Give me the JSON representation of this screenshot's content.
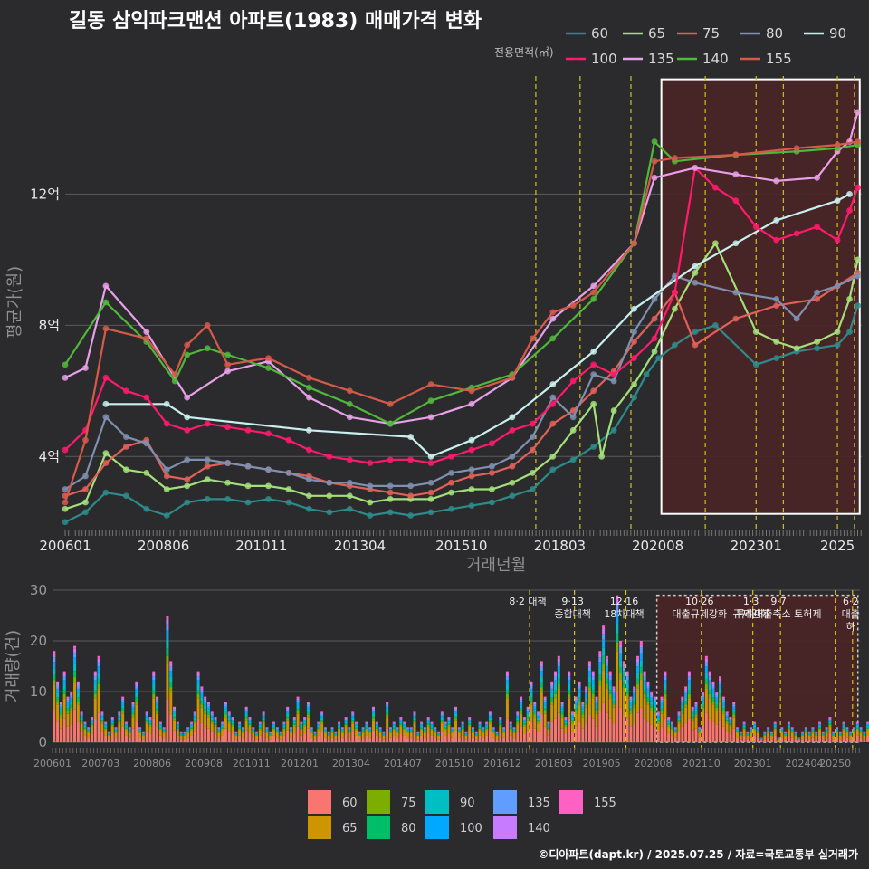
{
  "title": "길동 삼익파크맨션 아파트(1983) 매매가격 변화",
  "footer": "©디아파트(dapt.kr) / 2025.07.25 / 자료=국토교통부 실거래가",
  "colors": {
    "background": "#2b2b2d",
    "grid": "#5a5a5c",
    "highlight_fill": "#4a2325",
    "highlight_stroke": "#ffffff",
    "policy_line": "#d4c21e"
  },
  "chart_data": [
    {
      "type": "line",
      "xlabel": "거래년월",
      "ylabel": "평균가(원)",
      "ylim": [
        1.8,
        15.6
      ],
      "y_unit_note": "억",
      "y_ticks": [
        4,
        8,
        12
      ],
      "y_tick_labels": [
        "4억",
        "8억",
        "12억"
      ],
      "xlim": [
        2006.0,
        2025.6
      ],
      "x_ticks": [
        2006.0,
        2008.42,
        2010.83,
        2013.25,
        2015.75,
        2018.17,
        2020.58,
        2023.0,
        2025.0
      ],
      "x_tick_labels": [
        "200601",
        "200806",
        "201011",
        "201304",
        "201510",
        "201803",
        "202008",
        "202301",
        "2025"
      ],
      "legend": {
        "title": "전용면적(㎡)",
        "position": "top-right"
      },
      "highlight_region": {
        "x": [
          2020.67,
          2025.55
        ],
        "y": [
          2.25,
          15.5
        ]
      },
      "policy_dates": [
        2017.58,
        2018.67,
        2019.92,
        2021.75,
        2023.0,
        2023.67,
        2025.0,
        2025.42
      ],
      "series": [
        {
          "name": "60",
          "color": "#2e8b8b",
          "x": [
            2006.0,
            2006.5,
            2007.0,
            2007.5,
            2008.0,
            2008.5,
            2009.0,
            2009.5,
            2010.0,
            2010.5,
            2011.0,
            2011.5,
            2012.0,
            2012.5,
            2013.0,
            2013.5,
            2014.0,
            2014.5,
            2015.0,
            2015.5,
            2016.0,
            2016.5,
            2017.0,
            2017.5,
            2018.0,
            2018.5,
            2019.0,
            2019.5,
            2020.0,
            2020.3,
            2020.6,
            2021.0,
            2021.5,
            2022.0,
            2023.0,
            2023.5,
            2024.0,
            2024.5,
            2025.0,
            2025.3,
            2025.5
          ],
          "values": [
            2.0,
            2.3,
            2.9,
            2.8,
            2.4,
            2.2,
            2.6,
            2.7,
            2.7,
            2.6,
            2.7,
            2.6,
            2.4,
            2.3,
            2.4,
            2.2,
            2.3,
            2.2,
            2.3,
            2.4,
            2.5,
            2.6,
            2.8,
            3.0,
            3.6,
            3.9,
            4.3,
            4.8,
            5.8,
            6.5,
            7.0,
            7.4,
            7.8,
            8.0,
            6.8,
            7.0,
            7.2,
            7.3,
            7.4,
            7.8,
            8.6
          ]
        },
        {
          "name": "65",
          "color": "#a3e07a",
          "x": [
            2006.0,
            2006.5,
            2007.0,
            2007.5,
            2008.0,
            2008.5,
            2009.0,
            2009.5,
            2010.0,
            2010.5,
            2011.0,
            2011.5,
            2012.0,
            2012.5,
            2013.0,
            2013.5,
            2014.0,
            2014.5,
            2015.0,
            2015.5,
            2016.0,
            2016.5,
            2017.0,
            2017.5,
            2018.0,
            2018.5,
            2019.0,
            2019.2,
            2019.5,
            2020.0,
            2020.5,
            2021.0,
            2021.5,
            2022.0,
            2023.0,
            2023.5,
            2024.0,
            2024.5,
            2025.0,
            2025.3,
            2025.5
          ],
          "values": [
            2.4,
            2.6,
            4.1,
            3.6,
            3.5,
            3.0,
            3.1,
            3.3,
            3.2,
            3.1,
            3.1,
            3.0,
            2.8,
            2.8,
            2.8,
            2.6,
            2.7,
            2.7,
            2.7,
            2.9,
            3.0,
            3.0,
            3.2,
            3.5,
            4.0,
            4.8,
            5.6,
            4.0,
            5.4,
            6.2,
            7.2,
            8.5,
            9.6,
            10.5,
            7.8,
            7.5,
            7.3,
            7.5,
            7.8,
            8.8,
            10.0
          ]
        },
        {
          "name": "75",
          "color": "#e0605a",
          "x": [
            2006.0,
            2006.5,
            2007.0,
            2007.5,
            2008.0,
            2008.5,
            2009.0,
            2009.5,
            2010.0,
            2010.5,
            2011.0,
            2011.5,
            2012.0,
            2012.5,
            2013.0,
            2013.5,
            2014.0,
            2014.5,
            2015.0,
            2015.5,
            2016.0,
            2016.5,
            2017.0,
            2017.5,
            2018.0,
            2018.5,
            2019.0,
            2019.5,
            2020.0,
            2020.5,
            2021.0,
            2021.5,
            2022.5,
            2023.5,
            2024.5,
            2025.0,
            2025.5
          ],
          "values": [
            2.8,
            3.0,
            3.8,
            4.3,
            4.5,
            3.4,
            3.3,
            3.7,
            3.8,
            3.7,
            3.6,
            3.5,
            3.4,
            3.2,
            3.1,
            3.0,
            2.9,
            2.8,
            2.9,
            3.2,
            3.4,
            3.5,
            3.7,
            4.2,
            5.0,
            5.4,
            6.0,
            6.6,
            7.5,
            8.2,
            9.0,
            7.4,
            8.2,
            8.6,
            8.8,
            9.2,
            9.6
          ]
        },
        {
          "name": "80",
          "color": "#7f8fb0",
          "x": [
            2006.0,
            2006.5,
            2007.0,
            2007.5,
            2008.0,
            2008.5,
            2009.0,
            2009.5,
            2010.0,
            2010.5,
            2011.0,
            2011.5,
            2012.0,
            2012.5,
            2013.0,
            2013.5,
            2014.0,
            2014.5,
            2015.0,
            2015.5,
            2016.0,
            2016.5,
            2017.0,
            2017.5,
            2018.0,
            2018.5,
            2019.0,
            2019.5,
            2020.0,
            2020.5,
            2021.0,
            2021.5,
            2022.5,
            2023.5,
            2024.0,
            2024.5,
            2025.0,
            2025.5
          ],
          "values": [
            3.0,
            3.4,
            5.2,
            4.6,
            4.4,
            3.6,
            3.9,
            3.9,
            3.8,
            3.7,
            3.6,
            3.5,
            3.3,
            3.2,
            3.2,
            3.1,
            3.1,
            3.1,
            3.2,
            3.5,
            3.6,
            3.7,
            4.0,
            4.6,
            5.8,
            5.2,
            6.5,
            6.3,
            7.8,
            8.8,
            9.5,
            9.3,
            9.0,
            8.8,
            8.2,
            9.0,
            9.2,
            9.5
          ]
        },
        {
          "name": "90",
          "color": "#c8f0f0",
          "x": [
            2007.0,
            2008.5,
            2009.0,
            2012.0,
            2014.5,
            2015.0,
            2016.0,
            2017.0,
            2018.0,
            2019.0,
            2020.0,
            2021.5,
            2022.5,
            2023.5,
            2025.0,
            2025.3
          ],
          "values": [
            5.6,
            5.6,
            5.2,
            4.8,
            4.6,
            4.0,
            4.5,
            5.2,
            6.2,
            7.2,
            8.5,
            9.8,
            10.5,
            11.2,
            11.8,
            12.0
          ]
        },
        {
          "name": "100",
          "color": "#ff1a6b",
          "x": [
            2006.0,
            2006.5,
            2007.0,
            2007.5,
            2008.0,
            2008.5,
            2009.0,
            2009.5,
            2010.0,
            2010.5,
            2011.0,
            2011.5,
            2012.0,
            2012.5,
            2013.0,
            2013.5,
            2014.0,
            2014.5,
            2015.0,
            2015.5,
            2016.0,
            2016.5,
            2017.0,
            2017.5,
            2018.0,
            2018.5,
            2019.0,
            2019.5,
            2020.0,
            2020.5,
            2021.0,
            2021.5,
            2022.0,
            2022.5,
            2023.0,
            2023.5,
            2024.0,
            2024.5,
            2025.0,
            2025.3,
            2025.5
          ],
          "values": [
            4.2,
            4.8,
            6.4,
            6.0,
            5.8,
            5.0,
            4.8,
            5.0,
            4.9,
            4.8,
            4.7,
            4.5,
            4.2,
            4.0,
            3.9,
            3.8,
            3.9,
            3.9,
            3.8,
            4.0,
            4.2,
            4.4,
            4.8,
            5.0,
            5.6,
            6.3,
            6.8,
            6.5,
            7.0,
            7.6,
            9.0,
            12.8,
            12.2,
            11.8,
            11.0,
            10.6,
            10.8,
            11.0,
            10.6,
            11.5,
            12.2
          ]
        },
        {
          "name": "135",
          "color": "#e8a0e8",
          "x": [
            2006.0,
            2006.5,
            2007.0,
            2008.0,
            2009.0,
            2010.0,
            2011.0,
            2012.0,
            2013.0,
            2014.0,
            2015.0,
            2016.0,
            2017.0,
            2018.0,
            2019.0,
            2020.0,
            2020.5,
            2021.5,
            2022.5,
            2023.5,
            2024.5,
            2025.0,
            2025.3,
            2025.5
          ],
          "values": [
            6.4,
            6.7,
            9.2,
            7.8,
            5.8,
            6.6,
            6.9,
            5.8,
            5.2,
            5.0,
            5.2,
            5.6,
            6.4,
            8.2,
            9.2,
            10.5,
            12.5,
            12.8,
            12.6,
            12.4,
            12.5,
            13.3,
            13.6,
            14.5
          ]
        },
        {
          "name": "140",
          "color": "#4fb83a",
          "x": [
            2006.0,
            2007.0,
            2008.0,
            2008.7,
            2009.0,
            2009.5,
            2010.0,
            2011.0,
            2012.0,
            2013.0,
            2014.0,
            2015.0,
            2016.0,
            2017.0,
            2018.0,
            2019.0,
            2020.0,
            2020.5,
            2021.0,
            2022.5,
            2024.0,
            2025.0,
            2025.5
          ],
          "values": [
            6.8,
            8.7,
            7.5,
            6.3,
            7.1,
            7.3,
            7.1,
            6.7,
            6.1,
            5.6,
            5.0,
            5.7,
            6.1,
            6.5,
            7.6,
            8.8,
            10.5,
            13.6,
            13.0,
            13.2,
            13.3,
            13.4,
            13.5
          ]
        },
        {
          "name": "155",
          "color": "#d45a4a",
          "x": [
            2006.0,
            2006.5,
            2007.0,
            2008.0,
            2008.7,
            2009.0,
            2009.5,
            2010.0,
            2011.0,
            2012.0,
            2013.0,
            2014.0,
            2015.0,
            2016.0,
            2017.0,
            2017.5,
            2018.0,
            2018.5,
            2019.0,
            2020.0,
            2020.5,
            2021.0,
            2022.5,
            2024.0,
            2025.0,
            2025.5
          ],
          "values": [
            2.6,
            4.5,
            7.9,
            7.6,
            6.5,
            7.4,
            8.0,
            6.8,
            7.0,
            6.4,
            6.0,
            5.6,
            6.2,
            6.0,
            6.4,
            7.6,
            8.4,
            8.6,
            9.0,
            10.5,
            13.0,
            13.1,
            13.2,
            13.4,
            13.5,
            13.6
          ]
        }
      ]
    },
    {
      "type": "bar",
      "stacked": true,
      "ylabel": "거래량(건)",
      "ylim": [
        0,
        30
      ],
      "y_ticks": [
        0,
        10,
        20,
        30
      ],
      "xlim": [
        2006.0,
        2025.6
      ],
      "x_ticks": [
        2006.0,
        2007.17,
        2008.42,
        2009.67,
        2010.83,
        2012.0,
        2013.25,
        2014.5,
        2015.75,
        2016.92,
        2018.17,
        2019.33,
        2020.58,
        2021.75,
        2023.0,
        2024.25,
        2025.0
      ],
      "x_tick_labels": [
        "200601",
        "200703",
        "200806",
        "200908",
        "201011",
        "201201",
        "201304",
        "201407",
        "201510",
        "201612",
        "201803",
        "201905",
        "202008",
        "202110",
        "202301",
        "202404",
        "20250"
      ],
      "highlight_region": {
        "x": [
          2020.67,
          2025.55
        ],
        "y": [
          0,
          29
        ]
      },
      "policy_annotations": [
        {
          "x": 2017.58,
          "lines": [
            "8·2 대책"
          ]
        },
        {
          "x": 2018.67,
          "lines": [
            "9·13",
            "종합대책"
          ]
        },
        {
          "x": 2019.92,
          "lines": [
            "12·16",
            "18차대책"
          ]
        },
        {
          "x": 2021.75,
          "lines": [
            "10·26",
            "대출규제강화"
          ]
        },
        {
          "x": 2023.0,
          "lines": [
            "1·3",
            "규제완화"
          ]
        },
        {
          "x": 2023.67,
          "lines": [
            "9·7",
            "특례대출축소 토허제"
          ]
        },
        {
          "x": 2025.0,
          "lines": []
        },
        {
          "x": 2025.42,
          "lines": [
            "6·2",
            "대출",
            "하"
          ]
        }
      ],
      "series": [
        {
          "name": "60",
          "color": "#f8766d"
        },
        {
          "name": "65",
          "color": "#cd9600"
        },
        {
          "name": "75",
          "color": "#7cae00"
        },
        {
          "name": "80",
          "color": "#00be67"
        },
        {
          "name": "90",
          "color": "#00bfc4"
        },
        {
          "name": "100",
          "color": "#00a9ff"
        },
        {
          "name": "135",
          "color": "#619cff"
        },
        {
          "name": "140",
          "color": "#c77cff"
        },
        {
          "name": "155",
          "color": "#ff61c3"
        }
      ],
      "monthly_totals": [
        18,
        12,
        8,
        14,
        9,
        10,
        19,
        12,
        6,
        4,
        3,
        5,
        14,
        17,
        6,
        4,
        2,
        5,
        3,
        6,
        9,
        4,
        3,
        8,
        12,
        3,
        2,
        6,
        5,
        14,
        9,
        4,
        3,
        25,
        16,
        7,
        4,
        2,
        2,
        3,
        4,
        6,
        14,
        11,
        9,
        8,
        6,
        5,
        3,
        4,
        8,
        6,
        5,
        2,
        4,
        3,
        7,
        5,
        3,
        2,
        4,
        6,
        3,
        2,
        4,
        3,
        2,
        4,
        7,
        3,
        5,
        9,
        4,
        5,
        8,
        3,
        2,
        4,
        6,
        3,
        2,
        3,
        2,
        4,
        3,
        5,
        3,
        6,
        4,
        2,
        3,
        4,
        3,
        7,
        4,
        3,
        2,
        8,
        3,
        4,
        3,
        5,
        4,
        3,
        3,
        6,
        2,
        4,
        3,
        5,
        4,
        3,
        2,
        6,
        4,
        5,
        3,
        7,
        3,
        4,
        2,
        5,
        3,
        2,
        4,
        3,
        4,
        6,
        3,
        2,
        5,
        3,
        14,
        4,
        3,
        6,
        9,
        5,
        7,
        12,
        8,
        6,
        16,
        9,
        4,
        12,
        14,
        17,
        8,
        5,
        14,
        6,
        9,
        12,
        8,
        11,
        16,
        14,
        9,
        18,
        23,
        17,
        14,
        11,
        29,
        20,
        16,
        14,
        9,
        11,
        17,
        20,
        14,
        12,
        10,
        9,
        6,
        9,
        14,
        5,
        4,
        3,
        6,
        9,
        11,
        14,
        7,
        8,
        3,
        10,
        17,
        14,
        12,
        10,
        13,
        9,
        6,
        5,
        8,
        3,
        2,
        4,
        2,
        3,
        4,
        3,
        1,
        2,
        3,
        2,
        4,
        1,
        3,
        2,
        4,
        3,
        2,
        1,
        2,
        3,
        2,
        3,
        2,
        4,
        2,
        3,
        5,
        2,
        3,
        2,
        4,
        3,
        2,
        3,
        4,
        3,
        2,
        4,
        3,
        5,
        2,
        3,
        4,
        3,
        2,
        3,
        5,
        4,
        3,
        5,
        4,
        6,
        5,
        4,
        3,
        5,
        6,
        4,
        5,
        4,
        9,
        6,
        5,
        8,
        10,
        4,
        6,
        14,
        20
      ]
    }
  ]
}
